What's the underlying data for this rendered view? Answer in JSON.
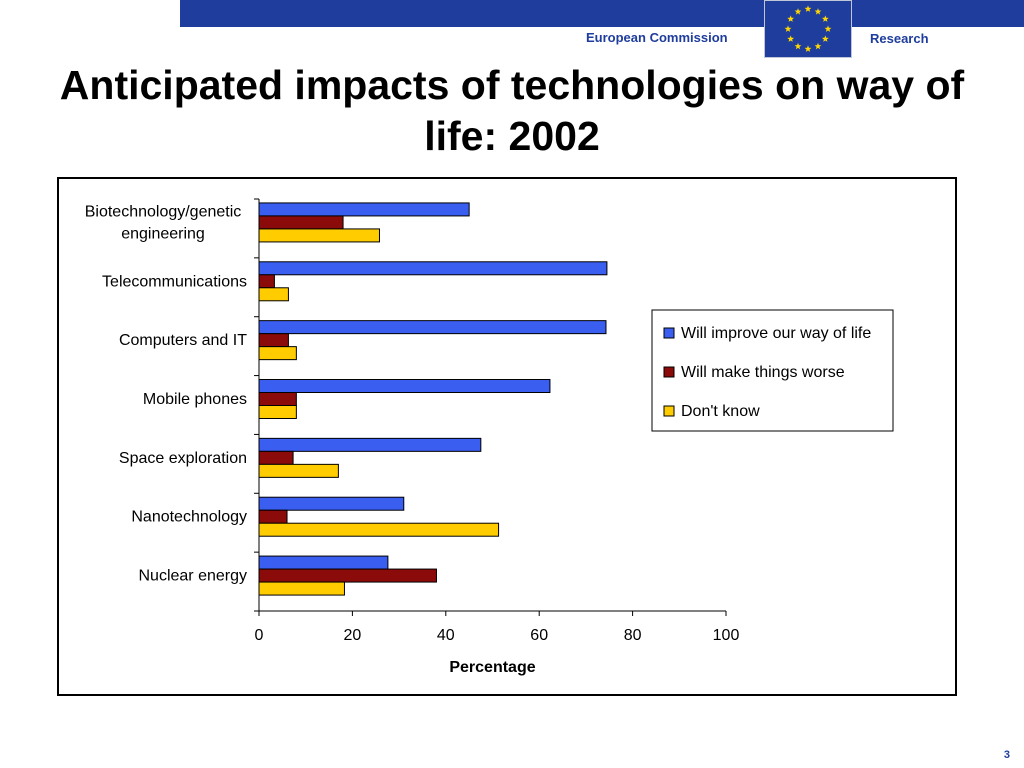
{
  "header": {
    "organization": "European Commission",
    "department": "Research",
    "flag_color": "#1f3d9c",
    "star_color": "#ffd700"
  },
  "slide": {
    "title": "Anticipated impacts of technologies on way of life: 2002",
    "page_number": "3"
  },
  "chart_data": {
    "type": "bar",
    "orientation": "horizontal",
    "categories": [
      "Biotechnology/genetic engineering",
      "Telecommunications",
      "Computers and IT",
      "Mobile phones",
      "Space exploration",
      "Nanotechnology",
      "Nuclear energy"
    ],
    "series": [
      {
        "name": "Will improve our way of life",
        "color": "#3a5ef0",
        "values": [
          45,
          74.5,
          74.3,
          62.3,
          47.5,
          31,
          27.6
        ]
      },
      {
        "name": "Will make things worse",
        "color": "#8b0a0a",
        "values": [
          18,
          3.3,
          6.3,
          8,
          7.3,
          6,
          38
        ]
      },
      {
        "name": "Don't know",
        "color": "#ffcc00",
        "values": [
          25.8,
          6.3,
          8,
          8,
          17,
          51.3,
          18.3
        ]
      }
    ],
    "xlabel": "Percentage",
    "ylabel": "",
    "xlim": [
      0,
      100
    ],
    "xticks": [
      0,
      20,
      40,
      60,
      80,
      100
    ],
    "grid": false,
    "legend_position": "right"
  }
}
